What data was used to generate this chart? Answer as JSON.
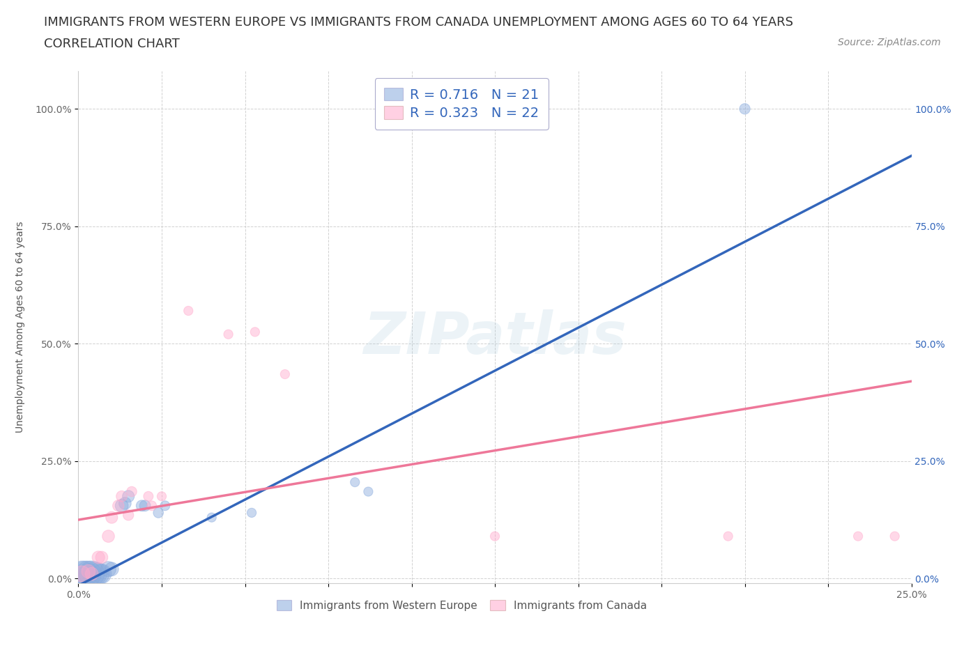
{
  "title_line1": "IMMIGRANTS FROM WESTERN EUROPE VS IMMIGRANTS FROM CANADA UNEMPLOYMENT AMONG AGES 60 TO 64 YEARS",
  "title_line2": "CORRELATION CHART",
  "source": "Source: ZipAtlas.com",
  "ylabel": "Unemployment Among Ages 60 to 64 years",
  "watermark": "ZIPatlas",
  "legend_top": [
    {
      "label": "R = 0.716   N = 21",
      "color": "#88aadd"
    },
    {
      "label": "R = 0.323   N = 22",
      "color": "#ffaabb"
    }
  ],
  "legend_bottom": [
    {
      "label": "Immigrants from Western Europe",
      "color": "#88aadd"
    },
    {
      "label": "Immigrants from Canada",
      "color": "#ffaabb"
    }
  ],
  "xlim": [
    0.0,
    0.25
  ],
  "ylim": [
    -0.01,
    1.08
  ],
  "xticks": [
    0.0,
    0.025,
    0.05,
    0.075,
    0.1,
    0.125,
    0.15,
    0.175,
    0.2,
    0.225,
    0.25
  ],
  "yticks": [
    0.0,
    0.25,
    0.5,
    0.75,
    1.0
  ],
  "xticklabels": [
    "0.0%",
    "",
    "",
    "",
    "",
    "",
    "",
    "",
    "",
    "",
    "25.0%"
  ],
  "yticklabels": [
    "0.0%",
    "25.0%",
    "50.0%",
    "75.0%",
    "100.0%"
  ],
  "blue_points": [
    [
      0.001,
      0.01
    ],
    [
      0.002,
      0.01
    ],
    [
      0.003,
      0.01
    ],
    [
      0.004,
      0.01
    ],
    [
      0.005,
      0.01
    ],
    [
      0.006,
      0.01
    ],
    [
      0.007,
      0.01
    ],
    [
      0.009,
      0.02
    ],
    [
      0.01,
      0.02
    ],
    [
      0.013,
      0.155
    ],
    [
      0.014,
      0.16
    ],
    [
      0.015,
      0.175
    ],
    [
      0.019,
      0.155
    ],
    [
      0.02,
      0.155
    ],
    [
      0.024,
      0.14
    ],
    [
      0.026,
      0.155
    ],
    [
      0.04,
      0.13
    ],
    [
      0.052,
      0.14
    ],
    [
      0.083,
      0.205
    ],
    [
      0.087,
      0.185
    ],
    [
      0.2,
      1.0
    ]
  ],
  "pink_points": [
    [
      0.001,
      0.01
    ],
    [
      0.003,
      0.015
    ],
    [
      0.004,
      0.01
    ],
    [
      0.006,
      0.045
    ],
    [
      0.007,
      0.045
    ],
    [
      0.009,
      0.09
    ],
    [
      0.01,
      0.13
    ],
    [
      0.012,
      0.155
    ],
    [
      0.013,
      0.175
    ],
    [
      0.015,
      0.135
    ],
    [
      0.016,
      0.185
    ],
    [
      0.021,
      0.175
    ],
    [
      0.022,
      0.155
    ],
    [
      0.025,
      0.175
    ],
    [
      0.033,
      0.57
    ],
    [
      0.045,
      0.52
    ],
    [
      0.053,
      0.525
    ],
    [
      0.062,
      0.435
    ],
    [
      0.125,
      0.09
    ],
    [
      0.195,
      0.09
    ],
    [
      0.234,
      0.09
    ],
    [
      0.245,
      0.09
    ]
  ],
  "blue_sizes": [
    700,
    700,
    700,
    700,
    600,
    500,
    400,
    250,
    200,
    180,
    160,
    150,
    130,
    130,
    110,
    100,
    90,
    90,
    90,
    90,
    120
  ],
  "pink_sizes": [
    280,
    200,
    180,
    170,
    160,
    160,
    150,
    140,
    130,
    120,
    110,
    100,
    100,
    90,
    90,
    90,
    90,
    90,
    90,
    90,
    90,
    90
  ],
  "blue_line_x": [
    0.0,
    0.25
  ],
  "blue_line_y": [
    -0.015,
    0.9
  ],
  "pink_line_x": [
    0.0,
    0.25
  ],
  "pink_line_y": [
    0.125,
    0.42
  ],
  "blue_color": "#88aadd",
  "pink_color": "#ffaacc",
  "blue_line_color": "#3366bb",
  "pink_line_color": "#ee7799",
  "grid_color": "#cccccc",
  "background_color": "#ffffff",
  "title_color": "#333333",
  "title_fontsize": 13,
  "axis_label_fontsize": 10,
  "tick_fontsize": 10,
  "source_fontsize": 10
}
